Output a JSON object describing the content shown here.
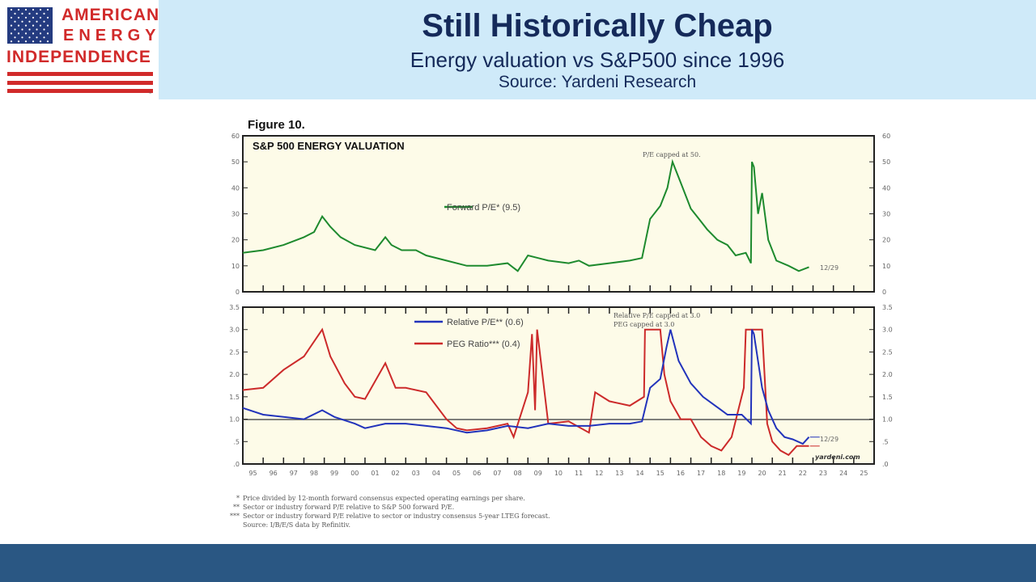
{
  "logo": {
    "line1": "AMERICAN",
    "line2": "ENERGY",
    "line3": "INDEPENDENCE",
    "tm": "™"
  },
  "header": {
    "title": "Still Historically Cheap",
    "subtitle": "Energy valuation vs S&P500 since 1996",
    "source": "Source: Yardeni Research"
  },
  "colors": {
    "header_bg": "#cfeaf9",
    "title_text": "#152a5a",
    "logo_red": "#d12a2a",
    "flag_blue": "#243b80",
    "plot_bg": "#fdfbe8",
    "forward_pe": "#1e8a2e",
    "relative_pe": "#2233bb",
    "peg": "#cc2a2a",
    "footer_bg": "#2a5783"
  },
  "chart_data": [
    {
      "type": "line",
      "figure_label": "Figure 10.",
      "title": "S&P 500 ENERGY VALUATION",
      "ylim": [
        0,
        60
      ],
      "yticks": [
        "0",
        "10",
        "20",
        "30",
        "40",
        "50",
        "60"
      ],
      "annotation_cap": "P/E capped at 50.",
      "end_label": "12/29",
      "series": [
        {
          "name": "Forward P/E* (9.5)",
          "color": "#1e8a2e",
          "x": [
            1995,
            1996,
            1997,
            1998,
            1998.5,
            1998.9,
            1999.3,
            1999.8,
            2000.5,
            2001.5,
            2002.0,
            2002.3,
            2002.8,
            2003.5,
            2004.0,
            2005.0,
            2006.0,
            2007.0,
            2008.0,
            2008.5,
            2009.0,
            2009.5,
            2010.0,
            2011.0,
            2011.5,
            2012.0,
            2013.0,
            2014.0,
            2014.6,
            2015.0,
            2015.5,
            2015.85,
            2016.1,
            2016.5,
            2017.0,
            2017.4,
            2017.8,
            2018.3,
            2018.8,
            2019.2,
            2019.7,
            2019.95,
            2020.0,
            2020.1,
            2020.3,
            2020.5,
            2020.8,
            2021.2,
            2021.8,
            2022.3,
            2022.8
          ],
          "y": [
            15,
            16,
            18,
            21,
            23,
            29,
            25,
            21,
            18,
            16,
            21,
            18,
            16,
            16,
            14,
            12,
            10,
            10,
            11,
            8,
            14,
            13,
            12,
            11,
            12,
            10,
            11,
            12,
            13,
            28,
            33,
            40,
            50,
            42,
            32,
            28,
            24,
            20,
            18,
            14,
            15,
            11,
            50,
            48,
            30,
            38,
            20,
            12,
            10,
            8,
            9.5
          ]
        }
      ]
    },
    {
      "type": "line",
      "ylim": [
        0,
        3.5
      ],
      "yticks": [
        ".0",
        ".5",
        "1.0",
        "1.5",
        "2.0",
        "2.5",
        "3.0",
        "3.5"
      ],
      "reference_line": 1.0,
      "annotation_cap_1": "Relative P/E capped at 3.0",
      "annotation_cap_2": "PEG capped at 3.0",
      "end_label": "12/29",
      "watermark": "yardeni.com",
      "categories": [
        "95",
        "96",
        "97",
        "98",
        "99",
        "00",
        "01",
        "02",
        "03",
        "04",
        "05",
        "06",
        "07",
        "08",
        "09",
        "10",
        "11",
        "12",
        "13",
        "14",
        "15",
        "16",
        "17",
        "18",
        "19",
        "20",
        "21",
        "22",
        "23",
        "24",
        "25"
      ],
      "series": [
        {
          "name": "Relative P/E** (0.6)",
          "color": "#2233bb",
          "x": [
            1995,
            1996,
            1997,
            1998,
            1998.9,
            1999.5,
            2000.5,
            2001.0,
            2002.0,
            2003.0,
            2004.0,
            2005.0,
            2006.0,
            2007.0,
            2008.0,
            2009.0,
            2010.0,
            2011.0,
            2012.0,
            2013.0,
            2014.0,
            2014.6,
            2015.0,
            2015.5,
            2015.8,
            2016.0,
            2016.4,
            2017.0,
            2017.6,
            2018.2,
            2018.8,
            2019.5,
            2019.95,
            2020.0,
            2020.1,
            2020.5,
            2020.8,
            2021.2,
            2021.6,
            2022.0,
            2022.5,
            2022.8
          ],
          "y": [
            1.25,
            1.1,
            1.05,
            1.0,
            1.2,
            1.05,
            0.9,
            0.8,
            0.9,
            0.9,
            0.85,
            0.8,
            0.7,
            0.75,
            0.85,
            0.8,
            0.9,
            0.85,
            0.85,
            0.9,
            0.9,
            0.95,
            1.7,
            1.9,
            2.6,
            3.0,
            2.3,
            1.8,
            1.5,
            1.3,
            1.1,
            1.1,
            0.9,
            3.0,
            2.9,
            1.7,
            1.2,
            0.8,
            0.6,
            0.55,
            0.45,
            0.6
          ]
        },
        {
          "name": "PEG Ratio*** (0.4)",
          "color": "#cc2a2a",
          "x": [
            1995,
            1996,
            1997,
            1998,
            1998.9,
            1999.3,
            2000.0,
            2000.5,
            2001.0,
            2002.0,
            2002.5,
            2003.0,
            2004.0,
            2005.0,
            2005.5,
            2006.0,
            2007.0,
            2008.0,
            2008.3,
            2009.0,
            2009.2,
            2009.35,
            2009.45,
            2010.0,
            2011.0,
            2012.0,
            2012.3,
            2013.0,
            2014.0,
            2014.7,
            2014.75,
            2015.5,
            2015.7,
            2016.0,
            2016.5,
            2017.0,
            2017.5,
            2018.0,
            2018.5,
            2019.0,
            2019.6,
            2019.7,
            2020.5,
            2020.75,
            2021.0,
            2021.4,
            2021.8,
            2022.2,
            2022.8
          ],
          "y": [
            1.65,
            1.7,
            2.1,
            2.4,
            3.0,
            2.4,
            1.8,
            1.5,
            1.45,
            2.25,
            1.7,
            1.7,
            1.6,
            1.0,
            0.8,
            0.75,
            0.8,
            0.9,
            0.6,
            1.6,
            2.9,
            1.2,
            3.0,
            0.9,
            0.95,
            0.7,
            1.6,
            1.4,
            1.3,
            1.5,
            3.0,
            3.0,
            2.0,
            1.4,
            1.0,
            1.0,
            0.6,
            0.4,
            0.3,
            0.6,
            1.7,
            3.0,
            3.0,
            0.9,
            0.5,
            0.3,
            0.2,
            0.4,
            0.4
          ]
        }
      ],
      "end_marker_lines": {
        "relative_pe": 0.6,
        "peg": 0.4
      }
    }
  ],
  "footnotes": [
    {
      "mark": "*",
      "text": "Price divided by 12-month forward consensus expected operating earnings per share."
    },
    {
      "mark": "**",
      "text": "Sector or industry forward P/E relative to S&P 500 forward P/E."
    },
    {
      "mark": "***",
      "text": "Sector or industry forward P/E relative to sector or industry consensus 5-year LTEG forecast."
    },
    {
      "mark": "",
      "text": "Source: I/B/E/S data by Refinitiv."
    }
  ]
}
